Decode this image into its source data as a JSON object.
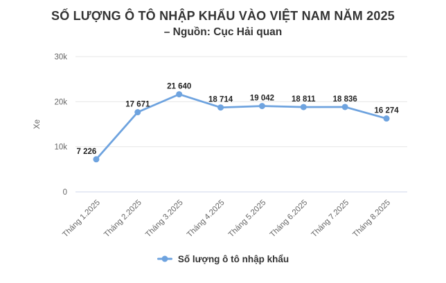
{
  "chart_data": {
    "type": "line",
    "title": "SỐ LƯỢNG Ô TÔ NHẬP KHẨU VÀO VIỆT NAM NĂM 2025",
    "subtitle": "– Nguồn: Cục Hải quan",
    "xlabel": "",
    "ylabel": "Xe",
    "categories": [
      "Tháng 1.2025",
      "Tháng 2.2025",
      "Tháng 3.2025",
      "Tháng 4.2025",
      "Tháng 5.2025",
      "Tháng 6.2025",
      "Tháng 7.2025",
      "Tháng 8.2025"
    ],
    "series": [
      {
        "name": "Số lượng ô tô nhập khẩu",
        "values": [
          7226,
          17671,
          21640,
          18714,
          19042,
          18811,
          18836,
          16274
        ],
        "value_labels": [
          "7 226",
          "17 671",
          "21 640",
          "18 714",
          "19 042",
          "18 811",
          "18 836",
          "16 274"
        ]
      }
    ],
    "ylim": [
      0,
      30000
    ],
    "yticks": [
      {
        "value": 0,
        "label": "0"
      },
      {
        "value": 10000,
        "label": "10k"
      },
      {
        "value": 20000,
        "label": "20k"
      },
      {
        "value": 30000,
        "label": "30k"
      }
    ],
    "grid": true,
    "legend_position": "bottom"
  },
  "colors": {
    "series": "#6EA3DF",
    "grid_line": "#e6e6e6",
    "axis_line": "#ccd6eb",
    "axis_label": "#666666",
    "data_label": "#222222",
    "title_text": "#333333"
  }
}
